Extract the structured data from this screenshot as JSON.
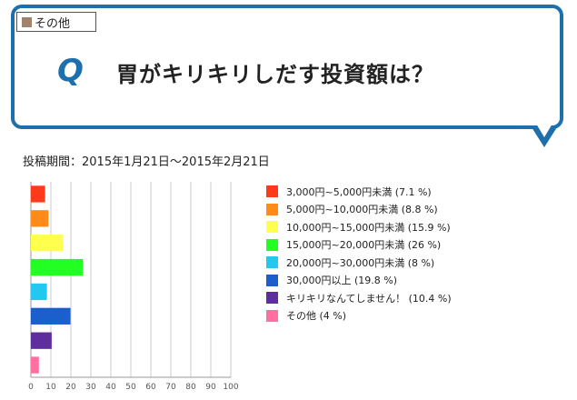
{
  "category": {
    "label": "その他",
    "color": "#a0826d"
  },
  "question": {
    "mark": "Q",
    "text": "胃がキリキリしだす投資額は？"
  },
  "period": "投稿期間：2015年1月21日〜2015年2月21日",
  "chart_data": {
    "type": "bar",
    "orientation": "horizontal",
    "categories": [
      "3,000円~5,000円未満",
      "5,000円~10,000円未満",
      "10,000円~15,000円未満",
      "15,000円~20,000円未満",
      "20,000円~30,000円未満",
      "30,000円以上",
      "キリキリなんてしません！",
      "その他"
    ],
    "values": [
      7.1,
      8.8,
      15.9,
      26,
      8,
      19.8,
      10.4,
      4
    ],
    "colors": [
      "#ff3a1a",
      "#ff8c1a",
      "#ffff4d",
      "#22ff22",
      "#22c8f0",
      "#1a5fcc",
      "#5e2e9e",
      "#ff6fa0"
    ],
    "xlim": [
      0,
      100
    ],
    "xticks": [
      0,
      10,
      20,
      30,
      40,
      50,
      60,
      70,
      80,
      90,
      100
    ],
    "grid": true,
    "legend_position": "right",
    "legend": [
      "3,000円~5,000円未満 (7.1 %)",
      "5,000円~10,000円未満 (8.8 %)",
      "10,000円~15,000円未満 (15.9 %)",
      "15,000円~20,000円未満 (26 %)",
      "20,000円~30,000円未満 (8 %)",
      "30,000円以上 (19.8 %)",
      "キリキリなんてしません！ (10.4 %)",
      "その他 (4 %)"
    ]
  }
}
